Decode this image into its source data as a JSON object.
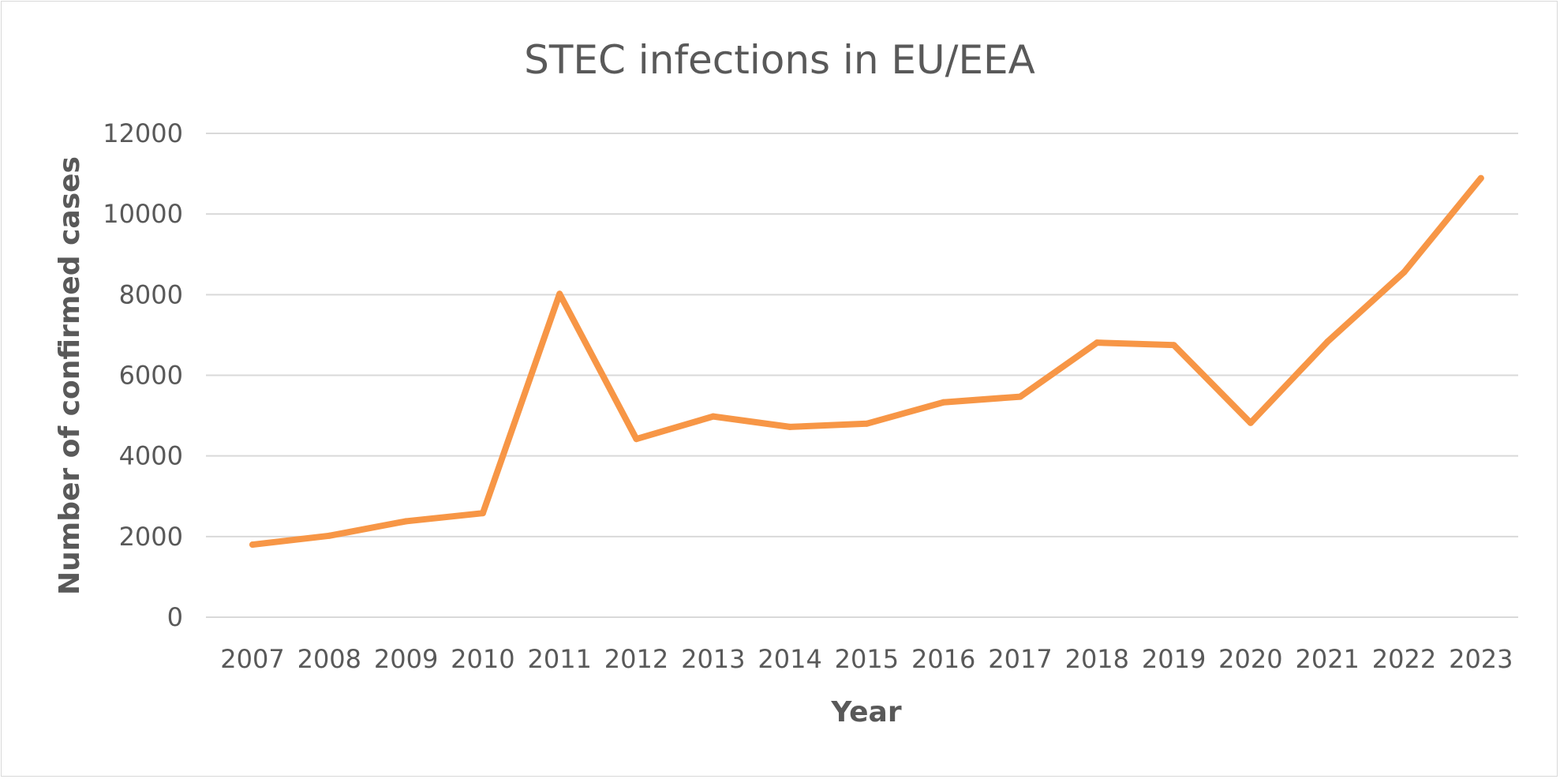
{
  "chart_data": {
    "type": "line",
    "title": "STEC infections in EU/EEA",
    "xlabel": "Year",
    "ylabel": "Number of confirmed cases",
    "categories": [
      "2007",
      "2008",
      "2009",
      "2010",
      "2011",
      "2012",
      "2013",
      "2014",
      "2015",
      "2016",
      "2017",
      "2018",
      "2019",
      "2020",
      "2021",
      "2022",
      "2023"
    ],
    "yticks": [
      "0",
      "2000",
      "4000",
      "6000",
      "8000",
      "10000",
      "12000"
    ],
    "ylim": [
      0,
      12000
    ],
    "grid": true,
    "legend": "none",
    "series": [
      {
        "color": "#f79646",
        "values": [
          1800,
          2020,
          2380,
          2580,
          8020,
          4420,
          4980,
          4720,
          4800,
          5330,
          5470,
          6810,
          6750,
          4820,
          6830,
          8560,
          10890
        ]
      }
    ]
  }
}
